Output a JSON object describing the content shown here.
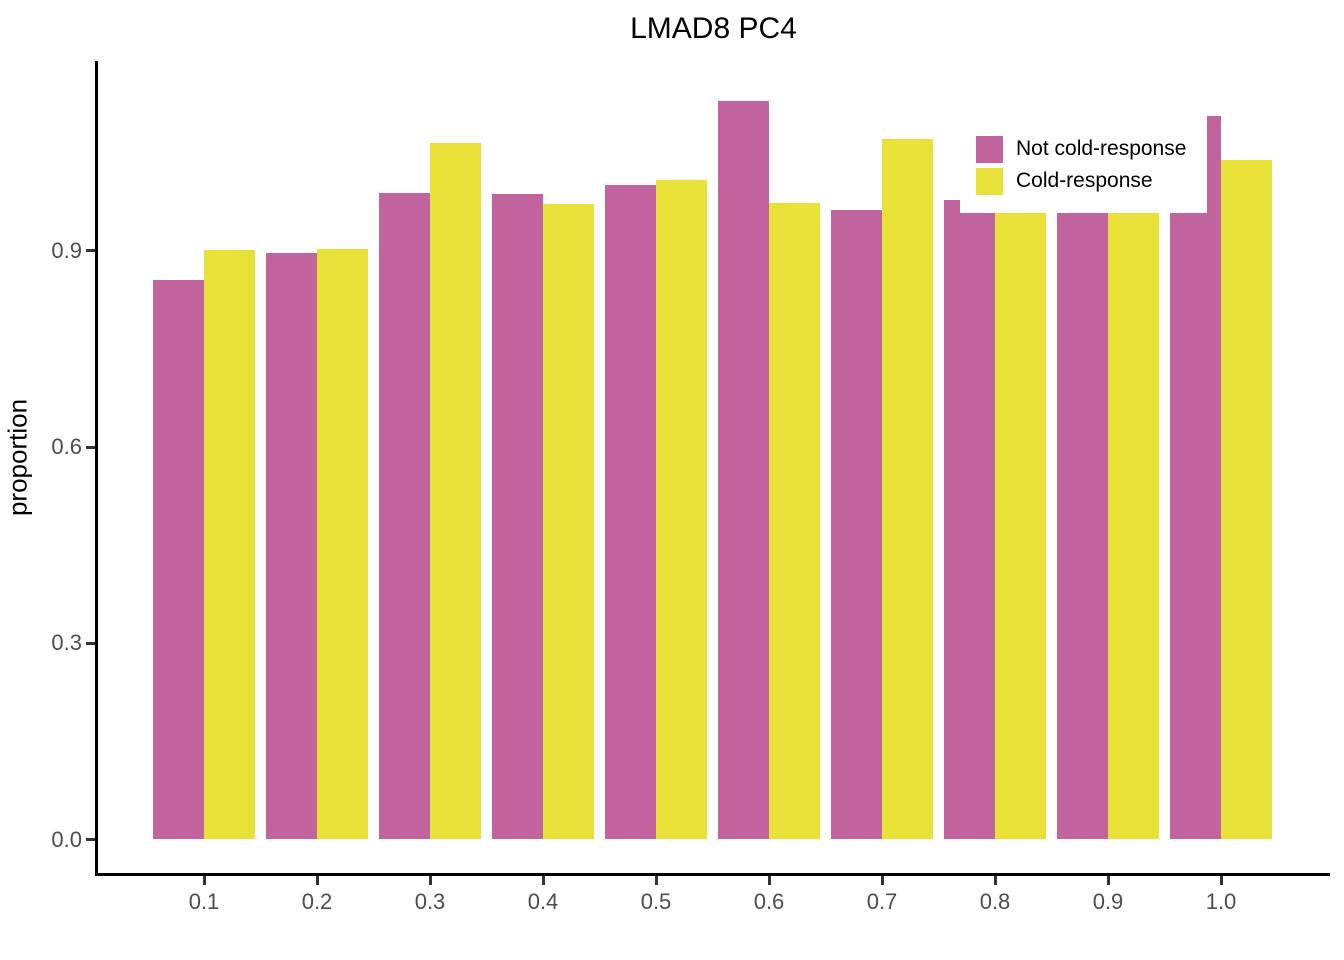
{
  "chart_data": {
    "type": "bar",
    "bar_mode": "dodge",
    "title": "LMAD8 PC4",
    "xlabel": "",
    "ylabel": "proportion",
    "categories": [
      "0.1",
      "0.2",
      "0.3",
      "0.4",
      "0.5",
      "0.6",
      "0.7",
      "0.8",
      "0.9",
      "1.0"
    ],
    "series": [
      {
        "name": "Not cold-response",
        "color": "#C1639C",
        "values": [
          0.855,
          0.897,
          0.988,
          0.987,
          1.001,
          1.129,
          0.962,
          0.978,
          0.958,
          1.106
        ]
      },
      {
        "name": "Cold-response",
        "color": "#E8E138",
        "values": [
          0.901,
          0.903,
          1.065,
          0.972,
          1.008,
          0.973,
          1.072,
          0.958,
          0.958,
          1.039
        ]
      }
    ],
    "yticks": [
      0.0,
      0.3,
      0.6,
      0.9
    ],
    "ytick_labels": [
      "0.0",
      "0.3",
      "0.6",
      "0.9"
    ],
    "ylim": [
      0,
      1.19
    ],
    "grid": false,
    "legend_position": "inside-top-right",
    "legend_entries": [
      "Not cold-response",
      "Cold-response"
    ]
  },
  "colors": {
    "background": "#FFFFFF",
    "axis_line": "#000000",
    "tick_mark": "#333333",
    "tick_label": "#4D4D4D",
    "title_text": "#000000",
    "not_cold_response": "#C1639C",
    "cold_response": "#E8E138"
  }
}
